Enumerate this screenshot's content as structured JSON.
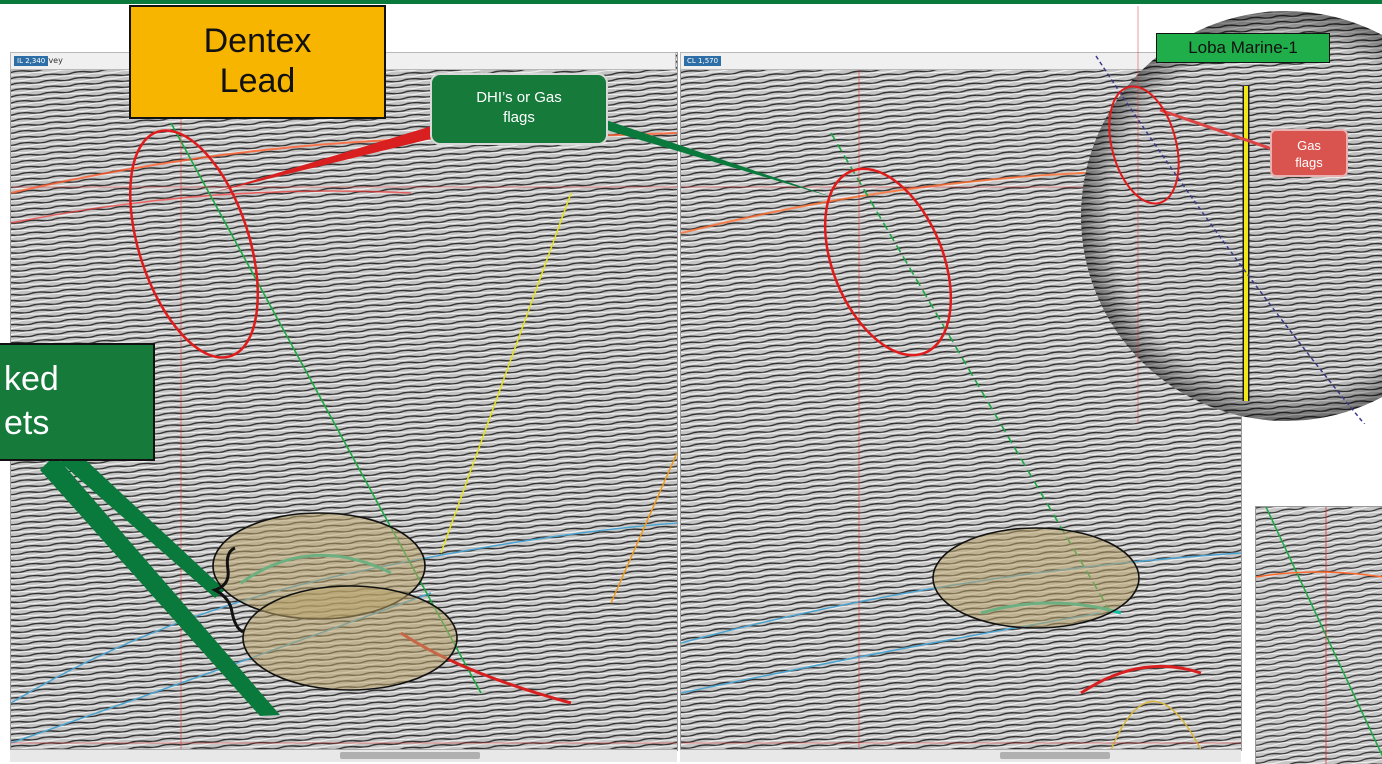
{
  "callouts": {
    "dentex": {
      "line1": "Dentex",
      "line2": "Lead"
    },
    "dhi": {
      "line1": "DHI’s or Gas",
      "line2": "flags"
    },
    "stacked": {
      "line1": "ked",
      "line2": "ets"
    },
    "gas": {
      "line1": "Gas",
      "line2": "flags"
    },
    "well": "Loba Marine-1"
  },
  "left_panel": {
    "survey_label": "Survey",
    "coord_label": "IL 2,340"
  },
  "right_panel": {
    "coord_label": "CL 1,570"
  },
  "colors": {
    "brand_green": "#0a7a3c",
    "callout_green": "#157a3a",
    "callout_orange": "#f7b500",
    "lead_ellipse": "#e11b1b",
    "target_fill": "#b8a268"
  }
}
